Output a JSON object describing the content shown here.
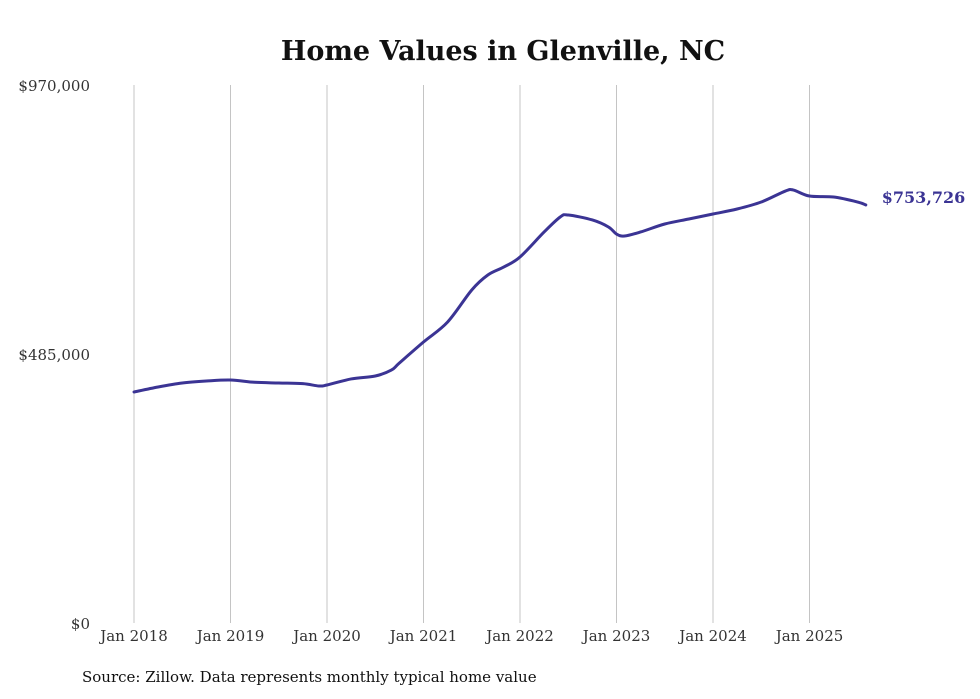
{
  "chart_data": {
    "type": "line",
    "title": "Home Values in Glenville, NC",
    "xlabel": "",
    "ylabel": "",
    "ylim": [
      0,
      970000
    ],
    "y_ticks": [
      {
        "value": 0,
        "label": "$0"
      },
      {
        "value": 485000,
        "label": "$485,000"
      },
      {
        "value": 970000,
        "label": "$970,000"
      }
    ],
    "x_ticks": [
      {
        "year": 2018,
        "label": "Jan 2018"
      },
      {
        "year": 2019,
        "label": "Jan 2019"
      },
      {
        "year": 2020,
        "label": "Jan 2020"
      },
      {
        "year": 2021,
        "label": "Jan 2021"
      },
      {
        "year": 2022,
        "label": "Jan 2022"
      },
      {
        "year": 2023,
        "label": "Jan 2023"
      },
      {
        "year": 2024,
        "label": "Jan 2024"
      },
      {
        "year": 2025,
        "label": "Jan 2025"
      }
    ],
    "grid": "vertical",
    "line_color": "#3b3494",
    "series": [
      {
        "name": "Typical home value",
        "points": [
          [
            "2018-01",
            416500
          ],
          [
            "2018-04",
            425500
          ],
          [
            "2018-07",
            432700
          ],
          [
            "2018-10",
            436300
          ],
          [
            "2019-01",
            438100
          ],
          [
            "2019-04",
            434000
          ],
          [
            "2019-07",
            432700
          ],
          [
            "2019-10",
            431500
          ],
          [
            "2019-12",
            427300
          ],
          [
            "2020-01",
            429100
          ],
          [
            "2020-04",
            440000
          ],
          [
            "2020-07",
            445300
          ],
          [
            "2020-09",
            456000
          ],
          [
            "2020-10",
            468800
          ],
          [
            "2021-01",
            506600
          ],
          [
            "2021-04",
            542700
          ],
          [
            "2021-07",
            600400
          ],
          [
            "2021-09",
            627400
          ],
          [
            "2021-11",
            641900
          ],
          [
            "2022-01",
            659900
          ],
          [
            "2022-04",
            705000
          ],
          [
            "2022-06",
            732000
          ],
          [
            "2022-07",
            735600
          ],
          [
            "2022-10",
            726600
          ],
          [
            "2022-12",
            714000
          ],
          [
            "2023-01",
            701300
          ],
          [
            "2023-02",
            697700
          ],
          [
            "2023-04",
            705000
          ],
          [
            "2023-07",
            719400
          ],
          [
            "2023-10",
            728400
          ],
          [
            "2024-01",
            737400
          ],
          [
            "2024-04",
            746400
          ],
          [
            "2024-07",
            759000
          ],
          [
            "2024-10",
            778800
          ],
          [
            "2024-11",
            780600
          ],
          [
            "2025-01",
            769800
          ],
          [
            "2025-04",
            768000
          ],
          [
            "2025-07",
            759000
          ],
          [
            "2025-08",
            753726
          ]
        ]
      }
    ],
    "end_label": "$753,726"
  },
  "source": "Source: Zillow. Data represents monthly typical home value"
}
